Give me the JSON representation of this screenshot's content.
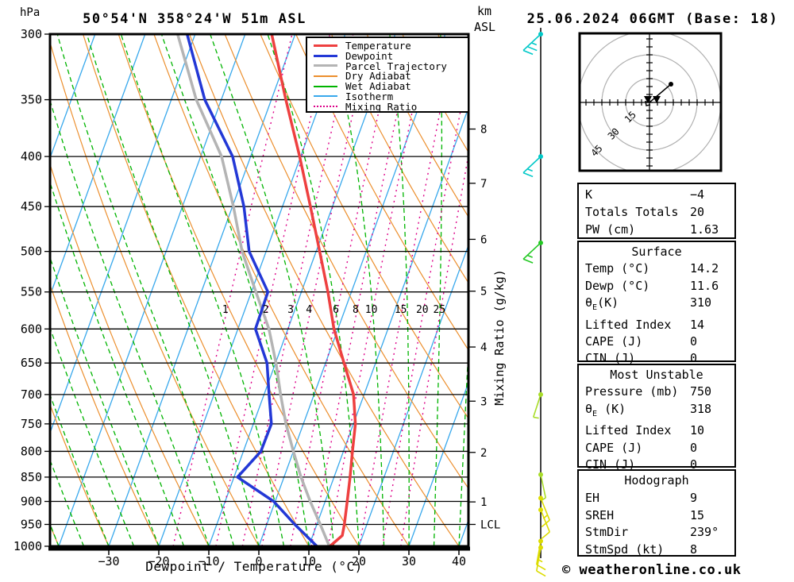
{
  "page": {
    "copyright": "© weatheronline.co.uk"
  },
  "header": {
    "title": "50°54'N 358°24'W 51m ASL",
    "datetime": "25.06.2024 06GMT (Base: 18)",
    "pressure_unit": "hPa",
    "altitude_unit_line1": "km",
    "altitude_unit_line2": "ASL"
  },
  "chart_data": {
    "type": "line",
    "chart_kind": "skew-t-log-p-sounding",
    "title": "50°54'N 358°24'W 51m ASL",
    "xlabel": "Dewpoint / Temperature (°C)",
    "ylabel_left": "hPa",
    "ylabel_right": "Mixing Ratio (g/kg)",
    "pressure_range": [
      300,
      1000
    ],
    "pressure_ticks": [
      300,
      350,
      400,
      450,
      500,
      550,
      600,
      650,
      700,
      750,
      800,
      850,
      900,
      950,
      1000
    ],
    "x_tick_values": [
      -30,
      -20,
      -10,
      0,
      10,
      20,
      30,
      40
    ],
    "x_tick_labels": [
      "−30",
      "−20",
      "−10",
      "0",
      "10",
      "20",
      "30",
      "40"
    ],
    "isotherm_step_c": 10,
    "dry_adiabat_step_c": 10,
    "wet_adiabat_step_c": 5,
    "mixing_ratio_lines": [
      1,
      2,
      3,
      4,
      6,
      8,
      10,
      15,
      20,
      25
    ],
    "mixing_ratio_label_pressure": 584,
    "km_asl_ticks": [
      {
        "label": "8",
        "p": 375
      },
      {
        "label": "7",
        "p": 426
      },
      {
        "label": "6",
        "p": 486
      },
      {
        "label": "5",
        "p": 549
      },
      {
        "label": "4",
        "p": 626
      },
      {
        "label": "3",
        "p": 711
      },
      {
        "label": "2",
        "p": 802
      },
      {
        "label": "1",
        "p": 901
      },
      {
        "label": "LCL",
        "p": 950
      }
    ],
    "series": [
      {
        "name": "Temperature",
        "color": "#ee4040",
        "width": 3.5,
        "points": [
          [
            300,
            -34.7
          ],
          [
            350,
            -27.1
          ],
          [
            400,
            -20.2
          ],
          [
            450,
            -14.4
          ],
          [
            500,
            -9.3
          ],
          [
            550,
            -4.7
          ],
          [
            600,
            -0.8
          ],
          [
            650,
            3.7
          ],
          [
            700,
            7.9
          ],
          [
            750,
            10.4
          ],
          [
            800,
            11.8
          ],
          [
            850,
            13.2
          ],
          [
            900,
            14.4
          ],
          [
            950,
            15.5
          ],
          [
            975,
            15.9
          ],
          [
            1000,
            14.2
          ]
        ]
      },
      {
        "name": "Dewpoint",
        "color": "#2338d6",
        "width": 3.5,
        "points": [
          [
            300,
            -51.6
          ],
          [
            350,
            -43.3
          ],
          [
            400,
            -33.6
          ],
          [
            450,
            -27.7
          ],
          [
            500,
            -23.4
          ],
          [
            550,
            -16.7
          ],
          [
            600,
            -16.5
          ],
          [
            650,
            -11.7
          ],
          [
            700,
            -9.0
          ],
          [
            750,
            -6.4
          ],
          [
            800,
            -6.5
          ],
          [
            850,
            -9.3
          ],
          [
            900,
            -0.3
          ],
          [
            950,
            5.6
          ],
          [
            1000,
            11.6
          ]
        ]
      },
      {
        "name": "Parcel Trajectory",
        "color": "#b4b4b4",
        "width": 3.5,
        "points": [
          [
            300,
            -53.5
          ],
          [
            350,
            -45.0
          ],
          [
            400,
            -35.8
          ],
          [
            450,
            -29.8
          ],
          [
            500,
            -24.8
          ],
          [
            550,
            -19.1
          ],
          [
            600,
            -13.8
          ],
          [
            650,
            -9.9
          ],
          [
            700,
            -6.7
          ],
          [
            750,
            -3.5
          ],
          [
            800,
            0.0
          ],
          [
            850,
            3.4
          ],
          [
            900,
            7.0
          ],
          [
            950,
            10.7
          ],
          [
            1000,
            14.1
          ]
        ]
      }
    ],
    "background_line_colors": {
      "dry_adiabat": "#ec8f2e",
      "wet_adiabat": "#00b400",
      "isotherm": "#38a8ec",
      "mixing_ratio": "#dd0088"
    }
  },
  "wind_barbs": [
    {
      "p": 300,
      "color": "#00c8c8",
      "speed_kt": 25,
      "stem_angle": 137,
      "feather_angle": 22,
      "feathers": [
        1,
        1,
        0.5
      ]
    },
    {
      "p": 400,
      "color": "#00c8c8",
      "speed_kt": 15,
      "stem_angle": 137,
      "feather_angle": 22,
      "feathers": [
        1,
        0.5
      ]
    },
    {
      "p": 490,
      "color": "#22c822",
      "speed_kt": 15,
      "stem_angle": 137,
      "feather_angle": 22,
      "feathers": [
        1,
        0.5
      ]
    },
    {
      "p": 700,
      "color": "#a8dc28",
      "speed_kt": 5,
      "stem_angle": 108,
      "feather_angle": 10,
      "feathers": [
        0.5
      ]
    },
    {
      "p": 845,
      "color": "#a8dc28",
      "speed_kt": 5,
      "stem_angle": 78,
      "feather_angle": 150,
      "feathers": [
        0.5
      ]
    },
    {
      "p": 893,
      "color": "#dcdc00",
      "speed_kt": 10,
      "stem_angle": 68,
      "feather_angle": 140,
      "feathers": [
        1,
        0.5
      ]
    },
    {
      "p": 918,
      "color": "#dcdc00",
      "speed_kt": 10,
      "stem_angle": 68,
      "feather_angle": 140,
      "feathers": [
        1
      ]
    },
    {
      "p": 988,
      "color": "#dcdc00",
      "speed_kt": 15,
      "stem_angle": 100,
      "feather_angle": 30,
      "feathers": [
        1,
        0.5
      ]
    },
    {
      "p": 1003,
      "color": "#dcdc00",
      "speed_kt": 10,
      "stem_angle": 100,
      "feather_angle": 30,
      "feathers": [
        1
      ]
    }
  ],
  "hodograph": {
    "unit": "kt",
    "rings_kt": [
      15,
      30,
      45
    ],
    "ring_labels": [
      "15",
      "30",
      "45"
    ],
    "trace_kt": [
      [
        0.5,
        -1.5
      ],
      [
        -2,
        -2
      ],
      [
        -2.5,
        0.5
      ],
      [
        0,
        0
      ],
      [
        13.5,
        11.5
      ]
    ],
    "storm_markers_kt": [
      [
        -1,
        2
      ],
      [
        4.5,
        2
      ]
    ]
  },
  "panels": [
    {
      "rows": [
        [
          "K",
          "−4"
        ],
        [
          "Totals Totals",
          "20"
        ],
        [
          "PW (cm)",
          "1.63"
        ]
      ]
    },
    {
      "title": "Surface",
      "rows": [
        [
          "Temp (°C)",
          "14.2"
        ],
        [
          "Dewp (°C)",
          "11.6"
        ],
        [
          "θE(K)",
          "310"
        ],
        [
          "Lifted Index",
          "14"
        ],
        [
          "CAPE (J)",
          "0"
        ],
        [
          "CIN (J)",
          "0"
        ]
      ]
    },
    {
      "title": "Most Unstable",
      "rows": [
        [
          "Pressure (mb)",
          "750"
        ],
        [
          "θE (K)",
          "318"
        ],
        [
          "Lifted Index",
          "10"
        ],
        [
          "CAPE (J)",
          "0"
        ],
        [
          "CIN (J)",
          "0"
        ]
      ]
    },
    {
      "title": "Hodograph",
      "rows": [
        [
          "EH",
          "9"
        ],
        [
          "SREH",
          "15"
        ],
        [
          "StmDir",
          "239°"
        ],
        [
          "StmSpd (kt)",
          "8"
        ]
      ]
    }
  ],
  "legend": {
    "items": [
      {
        "label": "Temperature",
        "color": "#ee4040",
        "style": "solid",
        "thick": true
      },
      {
        "label": "Dewpoint",
        "color": "#2338d6",
        "style": "solid",
        "thick": true
      },
      {
        "label": "Parcel Trajectory",
        "color": "#b4b4b4",
        "style": "solid",
        "thick": true
      },
      {
        "label": "Dry Adiabat",
        "color": "#ec8f2e",
        "style": "solid",
        "thick": false
      },
      {
        "label": "Wet Adiabat",
        "color": "#00b400",
        "style": "solid",
        "thick": false
      },
      {
        "label": "Isotherm",
        "color": "#38a8ec",
        "style": "solid",
        "thick": false
      },
      {
        "label": "Mixing Ratio",
        "color": "#dd0088",
        "style": "dotted",
        "thick": false
      }
    ]
  }
}
